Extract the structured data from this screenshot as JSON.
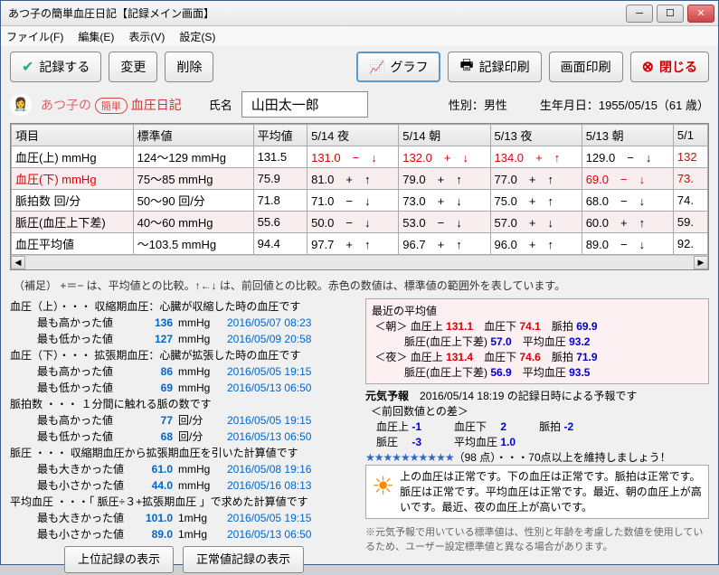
{
  "window": {
    "title": "あつ子の簡単血圧日記【記録メイン画面】"
  },
  "menu": {
    "file": "ファイル(F)",
    "edit": "編集(E)",
    "view": "表示(V)",
    "settings": "設定(S)"
  },
  "toolbar": {
    "record": "記録する",
    "modify": "変更",
    "delete": "削除",
    "graph": "グラフ",
    "print_record": "記録印刷",
    "print_screen": "画面印刷",
    "close": "閉じる"
  },
  "logo": {
    "part1": "あつ子の",
    "badge": "簡単",
    "part2": "血圧日記"
  },
  "user": {
    "name_label": "氏名",
    "name": "山田太一郎",
    "sex_label": "性別：",
    "sex": "男性",
    "birth_label": "生年月日：",
    "birth": "1955/05/15（61 歳）"
  },
  "grid": {
    "headers": [
      "項目",
      "標準値",
      "平均値",
      "5/14 夜",
      "5/14 朝",
      "5/13 夜",
      "5/13 朝",
      "5/1"
    ],
    "rows": [
      {
        "label": "血圧(上) mmHg",
        "std": "124～129 mmHg",
        "avg": "131.5",
        "cells": [
          {
            "v": "131.0",
            "r": true,
            "s1": "−",
            "s2": "↓",
            "sr": true
          },
          {
            "v": "132.0",
            "r": true,
            "s1": "+",
            "s2": "↓",
            "sr": true
          },
          {
            "v": "134.0",
            "r": true,
            "s1": "+",
            "s2": "↑",
            "sr": true
          },
          {
            "v": "129.0",
            "s1": "−",
            "s2": "↓"
          },
          {
            "v": "132",
            "r": true
          }
        ]
      },
      {
        "label": "血圧(下) mmHg",
        "std": "75～85 mmHg",
        "avg": "75.9",
        "alt": true,
        "redlabel": true,
        "cells": [
          {
            "v": "81.0",
            "s1": "+",
            "s2": "↑"
          },
          {
            "v": "79.0",
            "s1": "+",
            "s2": "↑"
          },
          {
            "v": "77.0",
            "s1": "+",
            "s2": "↑"
          },
          {
            "v": "69.0",
            "r": true,
            "s1": "−",
            "s2": "↓",
            "sr": true
          },
          {
            "v": "73.",
            "r": true
          }
        ]
      },
      {
        "label": "脈拍数 回/分",
        "std": "50～90 回/分",
        "avg": "71.8",
        "cells": [
          {
            "v": "71.0",
            "s1": "−",
            "s2": "↓"
          },
          {
            "v": "73.0",
            "s1": "+",
            "s2": "↓"
          },
          {
            "v": "75.0",
            "s1": "+",
            "s2": "↑"
          },
          {
            "v": "68.0",
            "s1": "−",
            "s2": "↓"
          },
          {
            "v": "74."
          }
        ]
      },
      {
        "label": "脈圧(血圧上下差)",
        "std": "40～60 mmHg",
        "avg": "55.6",
        "alt": true,
        "cells": [
          {
            "v": "50.0",
            "s1": "−",
            "s2": "↓"
          },
          {
            "v": "53.0",
            "s1": "−",
            "s2": "↓"
          },
          {
            "v": "57.0",
            "s1": "+",
            "s2": "↓"
          },
          {
            "v": "60.0",
            "s1": "+",
            "s2": "↑"
          },
          {
            "v": "59."
          }
        ]
      },
      {
        "label": "血圧平均値",
        "std": "～103.5 mmHg",
        "avg": "94.4",
        "cells": [
          {
            "v": "97.7",
            "s1": "+",
            "s2": "↑"
          },
          {
            "v": "96.7",
            "s1": "+",
            "s2": "↑"
          },
          {
            "v": "96.0",
            "s1": "+",
            "s2": "↑"
          },
          {
            "v": "89.0",
            "s1": "−",
            "s2": "↓"
          },
          {
            "v": "92."
          }
        ]
      }
    ]
  },
  "note": "（補足） +＝− は、平均値との比較。↑←↓ は、前回値との比較。赤色の数値は、標準値の範囲外を表しています。",
  "left": {
    "s1": {
      "title": "血圧（上）・・・ 収縮期血圧：心臓が収縮した時の血圧です",
      "hi_l": "最も高かった値",
      "hi_v": "136",
      "u": "mmHg",
      "hi_t": "2016/05/07 08:23",
      "lo_l": "最も低かった値",
      "lo_v": "127",
      "lo_t": "2016/05/09 20:58"
    },
    "s2": {
      "title": "血圧（下）・・・ 拡張期血圧：心臓が拡張した時の血圧です",
      "hi_l": "最も高かった値",
      "hi_v": "86",
      "u": "mmHg",
      "hi_t": "2016/05/05 19:15",
      "lo_l": "最も低かった値",
      "lo_v": "69",
      "lo_t": "2016/05/13 06:50"
    },
    "s3": {
      "title": "脈拍数 ・・・ １分間に触れる脈の数です",
      "hi_l": "最も高かった値",
      "hi_v": "77",
      "u": "回/分",
      "hi_t": "2016/05/05 19:15",
      "lo_l": "最も低かった値",
      "lo_v": "68",
      "lo_t": "2016/05/13 06:50"
    },
    "s4": {
      "title": "脈圧 ・・・ 収縮期血圧から拡張期血圧を引いた計算値です",
      "hi_l": "最も大きかった値",
      "hi_v": "61.0",
      "u": "mmHg",
      "hi_t": "2016/05/08 19:16",
      "lo_l": "最も小さかった値",
      "lo_v": "44.0",
      "lo_t": "2016/05/16 08:13"
    },
    "s5": {
      "title": "平均血圧 ・・・「 脈圧÷３+拡張期血圧 」で求めた計算値です",
      "hi_l": "最も大きかった値",
      "hi_v": "101.0",
      "u": "1mHg",
      "hi_t": "2016/05/05 19:15",
      "lo_l": "最も小さかった値",
      "lo_v": "89.0",
      "lo_t": "2016/05/13 06:50"
    }
  },
  "buttons2": {
    "a": "上位記録の表示",
    "b": "正常値記録の表示"
  },
  "avg": {
    "title": "最近の平均値",
    "m": "＜朝＞",
    "m_u": "血圧上",
    "m_uv": "131.1",
    "m_d": "血圧下",
    "m_dv": "74.1",
    "m_p": "脈拍",
    "m_pv": "69.9",
    "m_pp": "脈圧(血圧上下差)",
    "m_ppv": "57.0",
    "m_a": "平均血圧",
    "m_av": "93.2",
    "n": "＜夜＞",
    "n_u": "血圧上",
    "n_uv": "131.4",
    "n_d": "血圧下",
    "n_dv": "74.6",
    "n_p": "脈拍",
    "n_pv": "71.9",
    "n_pp": "脈圧(血圧上下差)",
    "n_ppv": "56.9",
    "n_a": "平均血圧",
    "n_av": "93.5"
  },
  "forecast": {
    "title": "元気予報",
    "time": "2016/05/14 18:19 の記録日時による予報です",
    "sub": "＜前回数値との差＞",
    "l1a": "血圧上",
    "l1av": "-1",
    "l1b": "血圧下",
    "l1bv": "2",
    "l1c": "脈拍",
    "l1cv": "-2",
    "l2a": "脈圧",
    "l2av": "-3",
    "l2b": "平均血圧",
    "l2bv": "1.0",
    "stars": "★★★★★★★★★★",
    "score": "（98 点）",
    "tail": "・・・70点以上を維持しましょう！",
    "body": "上の血圧は正常です。下の血圧は正常です。脈拍は正常です。脈圧は正常です。平均血圧は正常です。最近、朝の血圧上が高いです。最近、夜の血圧上が高いです。"
  },
  "footnote": "※元気予報で用いている標準値は、性別と年齢を考慮した数値を使用しているため、ユーザー設定標準値と異なる場合があります。"
}
